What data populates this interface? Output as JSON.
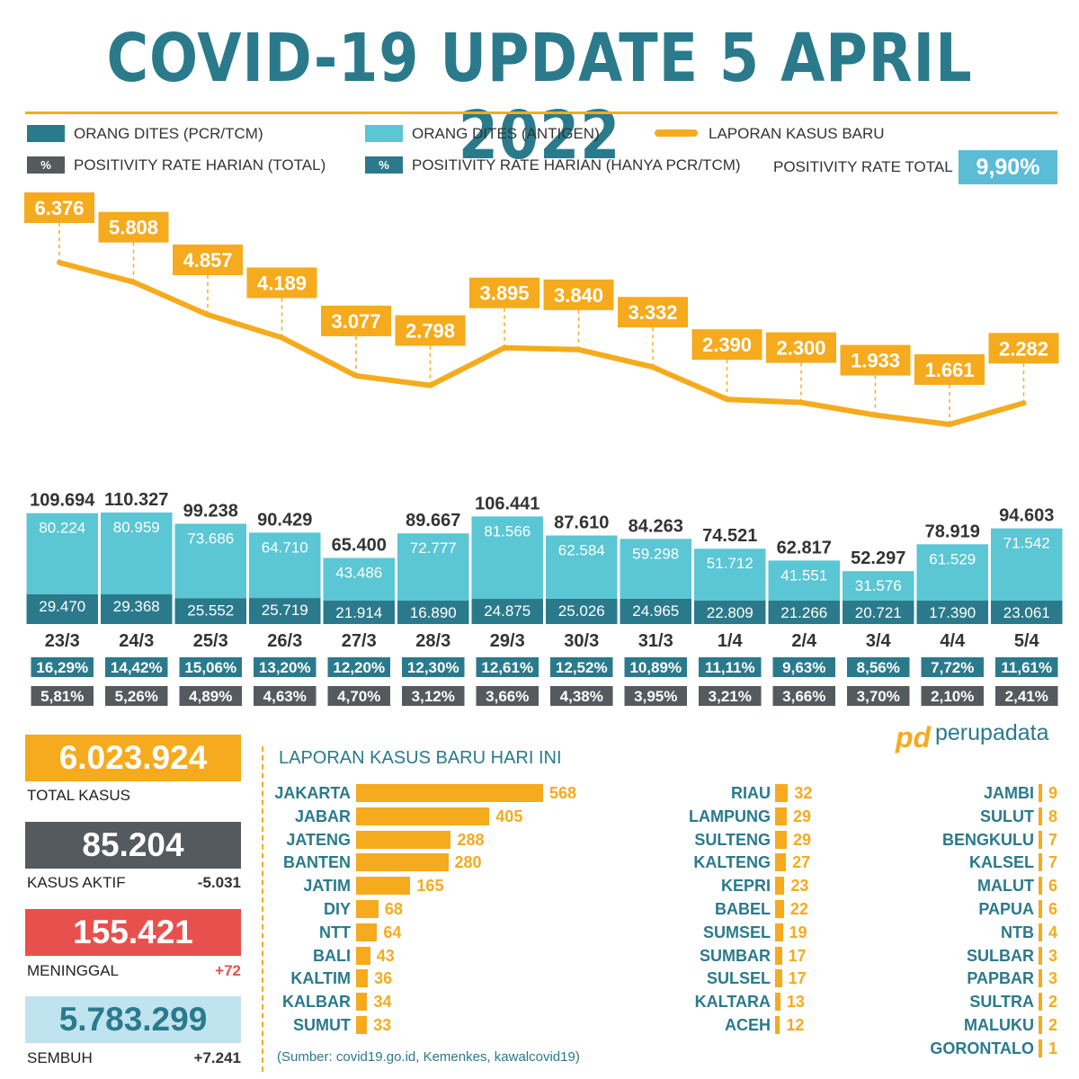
{
  "title": "COVID-19 UPDATE 5 APRIL 2022",
  "colors": {
    "teal_dark": "#2a7a8c",
    "teal_light": "#5bc6d4",
    "orange": "#f5ab1d",
    "gray": "#555a5e",
    "red": "#e8504d",
    "light_blue": "#bfe3ef",
    "rate_box": "#5bbcd6"
  },
  "legend": {
    "pcr": "ORANG DITES (PCR/TCM)",
    "antigen": "ORANG DITES (ANTIGEN)",
    "new_cases": "LAPORAN KASUS BARU",
    "pct_symbol": "%",
    "rate_total_daily": "POSITIVITY RATE HARIAN (TOTAL)",
    "rate_pcr_daily": "POSITIVITY RATE HARIAN (HANYA PCR/TCM)",
    "rate_total_label": "POSITIVITY RATE TOTAL",
    "rate_total_value": "9,90%"
  },
  "chart_data": {
    "type": "bar",
    "dates": [
      "23/3",
      "24/3",
      "25/3",
      "26/3",
      "27/3",
      "28/3",
      "29/3",
      "30/3",
      "31/3",
      "1/4",
      "2/4",
      "3/4",
      "4/4",
      "5/4"
    ],
    "new_cases": [
      6376,
      5808,
      4857,
      4189,
      3077,
      2798,
      3895,
      3840,
      3332,
      2390,
      2300,
      1933,
      1661,
      2282
    ],
    "new_cases_labels": [
      "6.376",
      "5.808",
      "4.857",
      "4.189",
      "3.077",
      "2.798",
      "3.895",
      "3.840",
      "3.332",
      "2.390",
      "2.300",
      "1.933",
      "1.661",
      "2.282"
    ],
    "series": [
      {
        "name": "ORANG DITES (PCR/TCM)",
        "values": [
          29470,
          29368,
          25552,
          25719,
          21914,
          16890,
          24875,
          25026,
          24965,
          22809,
          21266,
          20721,
          17390,
          23061
        ],
        "labels": [
          "29.470",
          "29.368",
          "25.552",
          "25.719",
          "21.914",
          "16.890",
          "24.875",
          "25.026",
          "24.965",
          "22.809",
          "21.266",
          "20.721",
          "17.390",
          "23.061"
        ]
      },
      {
        "name": "ORANG DITES (ANTIGEN)",
        "values": [
          80224,
          80959,
          73686,
          64710,
          43486,
          72777,
          81566,
          62584,
          59298,
          51712,
          41551,
          31576,
          61529,
          71542
        ],
        "labels": [
          "80.224",
          "80.959",
          "73.686",
          "64.710",
          "43.486",
          "72.777",
          "81.566",
          "62.584",
          "59.298",
          "51.712",
          "41.551",
          "31.576",
          "61.529",
          "71.542"
        ]
      }
    ],
    "totals": [
      109694,
      110327,
      99238,
      90429,
      65400,
      89667,
      106441,
      87610,
      84263,
      74521,
      62817,
      52297,
      78919,
      94603
    ],
    "totals_labels": [
      "109.694",
      "110.327",
      "99.238",
      "90.429",
      "65.400",
      "89.667",
      "106.441",
      "87.610",
      "84.263",
      "74.521",
      "62.817",
      "52.297",
      "78.919",
      "94.603"
    ],
    "positivity_pcr": [
      "16,29%",
      "14,42%",
      "15,06%",
      "13,20%",
      "12,20%",
      "12,30%",
      "12,61%",
      "12,52%",
      "10,89%",
      "11,11%",
      "9,63%",
      "8,56%",
      "7,72%",
      "11,61%"
    ],
    "positivity_total": [
      "5,81%",
      "5,26%",
      "4,89%",
      "4,63%",
      "4,70%",
      "3,12%",
      "3,66%",
      "4,38%",
      "3,95%",
      "3,21%",
      "3,66%",
      "3,70%",
      "2,10%",
      "2,41%"
    ]
  },
  "stats": {
    "total": {
      "value": "6.023.924",
      "label": "TOTAL KASUS"
    },
    "active": {
      "value": "85.204",
      "label": "KASUS AKTIF",
      "delta": "-5.031"
    },
    "deaths": {
      "value": "155.421",
      "label": "MENINGGAL",
      "delta": "+72"
    },
    "recovered": {
      "value": "5.783.299",
      "label": "SEMBUH",
      "delta": "+7.241"
    }
  },
  "logo": {
    "mark": "pd",
    "text": "perupadata"
  },
  "provinces": {
    "title": "LAPORAN KASUS BARU HARI INI",
    "source": "(Sumber: covid19.go.id, Kemenkes, kawalcovid19)",
    "columns": [
      [
        {
          "name": "JAKARTA",
          "value": 568
        },
        {
          "name": "JABAR",
          "value": 405
        },
        {
          "name": "JATENG",
          "value": 288
        },
        {
          "name": "BANTEN",
          "value": 280
        },
        {
          "name": "JATIM",
          "value": 165
        },
        {
          "name": "DIY",
          "value": 68
        },
        {
          "name": "NTT",
          "value": 64
        },
        {
          "name": "BALI",
          "value": 43
        },
        {
          "name": "KALTIM",
          "value": 36
        },
        {
          "name": "KALBAR",
          "value": 34
        },
        {
          "name": "SUMUT",
          "value": 33
        }
      ],
      [
        {
          "name": "RIAU",
          "value": 32
        },
        {
          "name": "LAMPUNG",
          "value": 29
        },
        {
          "name": "SULTENG",
          "value": 29
        },
        {
          "name": "KALTENG",
          "value": 27
        },
        {
          "name": "KEPRI",
          "value": 23
        },
        {
          "name": "BABEL",
          "value": 22
        },
        {
          "name": "SUMSEL",
          "value": 19
        },
        {
          "name": "SUMBAR",
          "value": 17
        },
        {
          "name": "SULSEL",
          "value": 17
        },
        {
          "name": "KALTARA",
          "value": 13
        },
        {
          "name": "ACEH",
          "value": 12
        }
      ],
      [
        {
          "name": "JAMBI",
          "value": 9
        },
        {
          "name": "SULUT",
          "value": 8
        },
        {
          "name": "BENGKULU",
          "value": 7
        },
        {
          "name": "KALSEL",
          "value": 7
        },
        {
          "name": "MALUT",
          "value": 6
        },
        {
          "name": "PAPUA",
          "value": 6
        },
        {
          "name": "NTB",
          "value": 4
        },
        {
          "name": "SULBAR",
          "value": 3
        },
        {
          "name": "PAPBAR",
          "value": 3
        },
        {
          "name": "SULTRA",
          "value": 2
        },
        {
          "name": "MALUKU",
          "value": 2
        },
        {
          "name": "GORONTALO",
          "value": 1
        }
      ]
    ]
  }
}
